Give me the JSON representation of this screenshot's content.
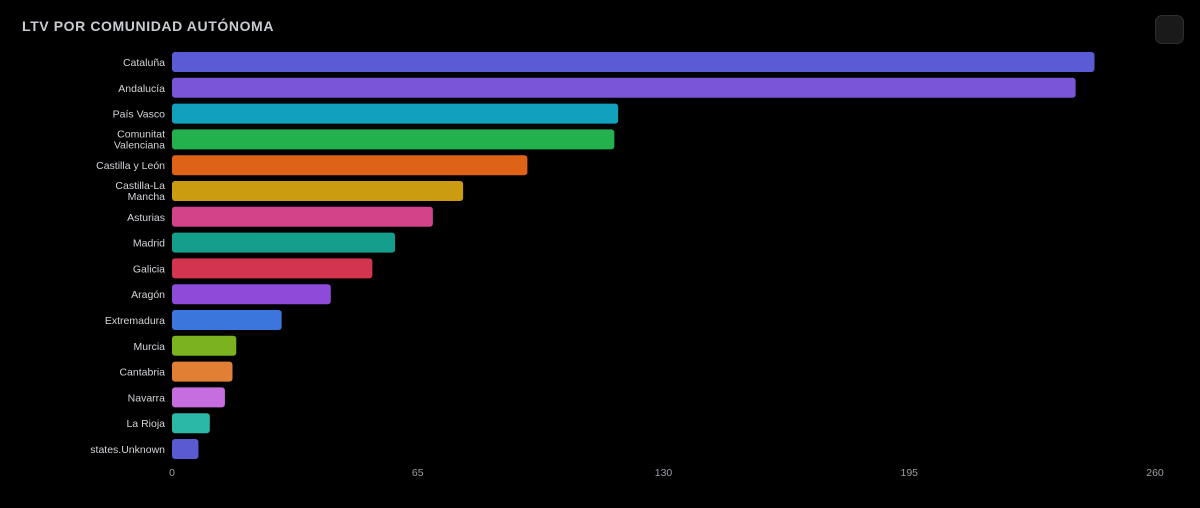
{
  "header": {
    "title": "LTV POR COMUNIDAD AUTÓNOMA"
  },
  "chart_data": {
    "type": "bar",
    "orientation": "horizontal",
    "title": "LTV POR COMUNIDAD AUTÓNOMA",
    "xlabel": "",
    "ylabel": "",
    "xlim": [
      0,
      260
    ],
    "x_ticks": [
      0,
      65,
      130,
      195,
      260
    ],
    "grid": false,
    "categories": [
      "Cataluña",
      "Andalucía",
      "País Vasco",
      "Comunitat Valenciana",
      "Castilla y León",
      "Castilla-La Mancha",
      "Asturias",
      "Madrid",
      "Galicia",
      "Aragón",
      "Extremadura",
      "Murcia",
      "Cantabria",
      "Navarra",
      "La Rioja",
      "states.Unknown"
    ],
    "values": [
      244,
      239,
      118,
      117,
      94,
      77,
      69,
      59,
      53,
      42,
      29,
      17,
      16,
      14,
      10,
      7
    ],
    "colors": [
      "#5b5bd6",
      "#7a55d8",
      "#12a0bf",
      "#22b14c",
      "#df6317",
      "#cc9c10",
      "#d2438a",
      "#149e8c",
      "#d3354f",
      "#8e4ad9",
      "#3b76dc",
      "#7bb320",
      "#e17f35",
      "#c66ddf",
      "#2cb8a6",
      "#5a5ad3"
    ]
  }
}
